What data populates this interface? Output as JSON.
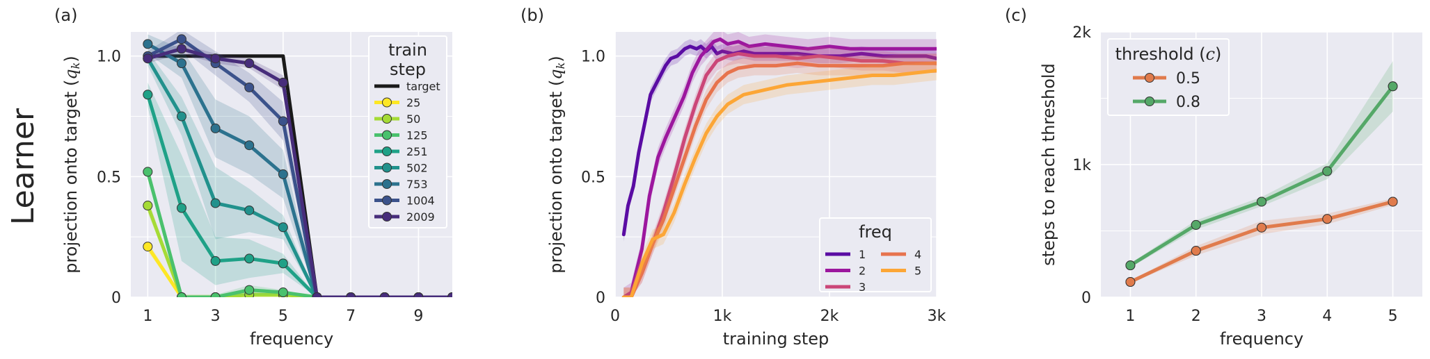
{
  "row_label": "Learner",
  "chart_data": [
    {
      "panel": "(a)",
      "type": "line",
      "xlabel": "frequency",
      "ylabel": "projection onto target (",
      "ylabel_math": "q",
      "ylabel_sub": "k",
      "ylabel_end": ")",
      "xlim": [
        0.5,
        10
      ],
      "ylim": [
        0,
        1.1
      ],
      "xticks": [
        1,
        3,
        5,
        7,
        9
      ],
      "yticks": [
        0,
        0.5,
        1.0
      ],
      "ytick_labels": [
        "0",
        "0.5",
        "1.0"
      ],
      "grid": true,
      "legend_title": [
        "train",
        "step"
      ],
      "legend_position": "upper-right",
      "x": [
        1,
        2,
        3,
        4,
        5,
        6,
        7,
        8,
        9,
        10
      ],
      "series": [
        {
          "name": "target",
          "color": "#1a1a1a",
          "marker": false,
          "values": [
            1,
            1,
            1,
            1,
            1,
            0,
            0,
            0,
            0,
            0
          ]
        },
        {
          "name": "25",
          "color": "#fde725",
          "marker": true,
          "values": [
            0.21,
            0.0,
            0.0,
            0.01,
            0.01,
            0,
            0,
            0,
            0,
            0
          ],
          "band": [
            0.02,
            0.01,
            0.01,
            0.01,
            0.01,
            0,
            0,
            0,
            0,
            0
          ]
        },
        {
          "name": "50",
          "color": "#a5db36",
          "marker": true,
          "values": [
            0.38,
            0.0,
            0.0,
            0.01,
            0.01,
            0,
            0,
            0,
            0,
            0
          ],
          "band": [
            0.03,
            0.01,
            0.01,
            0.02,
            0.01,
            0,
            0,
            0,
            0,
            0
          ]
        },
        {
          "name": "125",
          "color": "#4ac16d",
          "marker": true,
          "values": [
            0.52,
            0.0,
            0.0,
            0.03,
            0.02,
            0,
            0,
            0,
            0,
            0
          ],
          "band": [
            0.03,
            0.01,
            0.01,
            0.02,
            0.01,
            0,
            0,
            0,
            0,
            0
          ]
        },
        {
          "name": "251",
          "color": "#1fa187",
          "marker": true,
          "values": [
            0.84,
            0.37,
            0.15,
            0.16,
            0.14,
            0,
            0,
            0,
            0,
            0
          ],
          "band": [
            0.05,
            0.22,
            0.1,
            0.08,
            0.04,
            0,
            0,
            0,
            0,
            0
          ]
        },
        {
          "name": "502",
          "color": "#21918c",
          "marker": true,
          "values": [
            0.99,
            0.75,
            0.39,
            0.36,
            0.29,
            0,
            0,
            0,
            0,
            0
          ],
          "band": [
            0.03,
            0.08,
            0.15,
            0.09,
            0.05,
            0,
            0,
            0,
            0,
            0
          ]
        },
        {
          "name": "753",
          "color": "#2c728e",
          "marker": true,
          "values": [
            1.05,
            0.97,
            0.7,
            0.63,
            0.51,
            0,
            0,
            0,
            0,
            0
          ],
          "band": [
            0.04,
            0.06,
            0.12,
            0.12,
            0.1,
            0,
            0,
            0,
            0,
            0
          ]
        },
        {
          "name": "1004",
          "color": "#3b528b",
          "marker": true,
          "values": [
            1.0,
            1.07,
            0.97,
            0.87,
            0.73,
            0,
            0,
            0,
            0,
            0
          ],
          "band": [
            0.02,
            0.04,
            0.05,
            0.06,
            0.08,
            0,
            0,
            0,
            0,
            0
          ]
        },
        {
          "name": "2009",
          "color": "#472d7b",
          "marker": true,
          "values": [
            0.99,
            1.03,
            0.99,
            0.97,
            0.89,
            0,
            0,
            0,
            0,
            0
          ],
          "band": [
            0.02,
            0.02,
            0.02,
            0.02,
            0.03,
            0,
            0,
            0,
            0,
            0
          ]
        }
      ]
    },
    {
      "panel": "(b)",
      "type": "line",
      "xlabel": "training step",
      "ylabel": "projection onto target (",
      "ylabel_math": "q",
      "ylabel_sub": "k",
      "ylabel_end": ")",
      "xlim": [
        0,
        3000
      ],
      "ylim": [
        0,
        1.1
      ],
      "xticks": [
        0,
        1000,
        2000,
        3000
      ],
      "xtick_labels": [
        "0",
        "1k",
        "2k",
        "3k"
      ],
      "yticks": [
        0,
        0.5,
        1.0
      ],
      "ytick_labels": [
        "0",
        "0.5",
        "1.0"
      ],
      "grid": true,
      "legend_title": "freq",
      "legend_position": "lower-right",
      "series": [
        {
          "name": "1",
          "color": "#5a0ca3",
          "band": 0.03,
          "points": [
            [
              80,
              0.26
            ],
            [
              120,
              0.38
            ],
            [
              170,
              0.46
            ],
            [
              220,
              0.6
            ],
            [
              280,
              0.73
            ],
            [
              330,
              0.84
            ],
            [
              400,
              0.9
            ],
            [
              470,
              0.96
            ],
            [
              520,
              0.99
            ],
            [
              580,
              1.0
            ],
            [
              650,
              1.03
            ],
            [
              700,
              1.04
            ],
            [
              760,
              1.03
            ],
            [
              800,
              1.04
            ],
            [
              850,
              1.02
            ],
            [
              900,
              1.04
            ],
            [
              950,
              1.01
            ],
            [
              1000,
              1.02
            ],
            [
              1100,
              1.01
            ],
            [
              1200,
              1.02
            ],
            [
              1300,
              1.01
            ],
            [
              1500,
              1.01
            ],
            [
              1700,
              1.01
            ],
            [
              1900,
              1.0
            ],
            [
              2100,
              1.0
            ],
            [
              2300,
              1.01
            ],
            [
              2500,
              1.0
            ],
            [
              2700,
              1.0
            ],
            [
              2900,
              1.0
            ],
            [
              3000,
              0.99
            ]
          ]
        },
        {
          "name": "2",
          "color": "#9c179e",
          "band": 0.04,
          "points": [
            [
              80,
              0.0
            ],
            [
              150,
              0.02
            ],
            [
              250,
              0.2
            ],
            [
              320,
              0.42
            ],
            [
              400,
              0.58
            ],
            [
              470,
              0.66
            ],
            [
              550,
              0.74
            ],
            [
              640,
              0.83
            ],
            [
              720,
              0.93
            ],
            [
              800,
              1.0
            ],
            [
              860,
              1.03
            ],
            [
              920,
              1.06
            ],
            [
              980,
              1.07
            ],
            [
              1050,
              1.05
            ],
            [
              1150,
              1.06
            ],
            [
              1250,
              1.04
            ],
            [
              1400,
              1.05
            ],
            [
              1600,
              1.04
            ],
            [
              1800,
              1.03
            ],
            [
              2000,
              1.04
            ],
            [
              2200,
              1.03
            ],
            [
              2400,
              1.03
            ],
            [
              2600,
              1.03
            ],
            [
              2800,
              1.03
            ],
            [
              3000,
              1.03
            ]
          ]
        },
        {
          "name": "3",
          "color": "#cb4678",
          "band": 0.04,
          "points": [
            [
              80,
              0.0
            ],
            [
              150,
              0.0
            ],
            [
              250,
              0.1
            ],
            [
              350,
              0.22
            ],
            [
              450,
              0.35
            ],
            [
              550,
              0.5
            ],
            [
              650,
              0.66
            ],
            [
              750,
              0.8
            ],
            [
              850,
              0.92
            ],
            [
              950,
              0.98
            ],
            [
              1050,
              1.0
            ],
            [
              1150,
              1.01
            ],
            [
              1300,
              1.0
            ],
            [
              1500,
              1.0
            ],
            [
              1700,
              0.99
            ],
            [
              1900,
              1.0
            ],
            [
              2100,
              0.99
            ],
            [
              2300,
              0.98
            ],
            [
              2500,
              0.98
            ],
            [
              2700,
              0.97
            ],
            [
              3000,
              0.97
            ]
          ]
        },
        {
          "name": "4",
          "color": "#e7734d",
          "band": 0.04,
          "points": [
            [
              80,
              0.0
            ],
            [
              150,
              0.0
            ],
            [
              250,
              0.1
            ],
            [
              350,
              0.22
            ],
            [
              450,
              0.32
            ],
            [
              550,
              0.45
            ],
            [
              650,
              0.58
            ],
            [
              750,
              0.71
            ],
            [
              850,
              0.82
            ],
            [
              950,
              0.89
            ],
            [
              1050,
              0.93
            ],
            [
              1150,
              0.95
            ],
            [
              1300,
              0.96
            ],
            [
              1500,
              0.96
            ],
            [
              1700,
              0.97
            ],
            [
              1900,
              0.96
            ],
            [
              2100,
              0.96
            ],
            [
              2300,
              0.96
            ],
            [
              2500,
              0.96
            ],
            [
              2700,
              0.97
            ],
            [
              3000,
              0.97
            ]
          ]
        },
        {
          "name": "5",
          "color": "#fca636",
          "band": 0.04,
          "points": [
            [
              80,
              0.0
            ],
            [
              150,
              0.0
            ],
            [
              250,
              0.14
            ],
            [
              350,
              0.24
            ],
            [
              450,
              0.26
            ],
            [
              550,
              0.35
            ],
            [
              650,
              0.47
            ],
            [
              750,
              0.58
            ],
            [
              850,
              0.68
            ],
            [
              950,
              0.75
            ],
            [
              1050,
              0.8
            ],
            [
              1200,
              0.84
            ],
            [
              1400,
              0.86
            ],
            [
              1600,
              0.88
            ],
            [
              1800,
              0.89
            ],
            [
              2000,
              0.9
            ],
            [
              2200,
              0.91
            ],
            [
              2400,
              0.92
            ],
            [
              2600,
              0.92
            ],
            [
              2800,
              0.93
            ],
            [
              3000,
              0.94
            ]
          ]
        }
      ]
    },
    {
      "panel": "(c)",
      "type": "line",
      "xlabel": "frequency",
      "ylabel": "steps to reach threshold",
      "xlim": [
        0.55,
        5.45
      ],
      "ylim": [
        0,
        2000
      ],
      "xticks": [
        1,
        2,
        3,
        4,
        5
      ],
      "yticks": [
        0,
        1000,
        2000
      ],
      "ytick_labels": [
        "0",
        "1k",
        "2k"
      ],
      "grid": true,
      "legend_title": "threshold (",
      "legend_title_math": "c",
      "legend_title_end": ")",
      "legend_position": "upper-left",
      "x": [
        1,
        2,
        3,
        4,
        5
      ],
      "series": [
        {
          "name": "0.5",
          "color": "#e07b4c",
          "values": [
            115,
            350,
            525,
            590,
            720
          ],
          "band": [
            10,
            35,
            50,
            40,
            25
          ]
        },
        {
          "name": "0.8",
          "color": "#55a868",
          "values": [
            240,
            545,
            720,
            950,
            1590
          ],
          "band": [
            15,
            35,
            35,
            60,
            190
          ]
        }
      ]
    }
  ]
}
